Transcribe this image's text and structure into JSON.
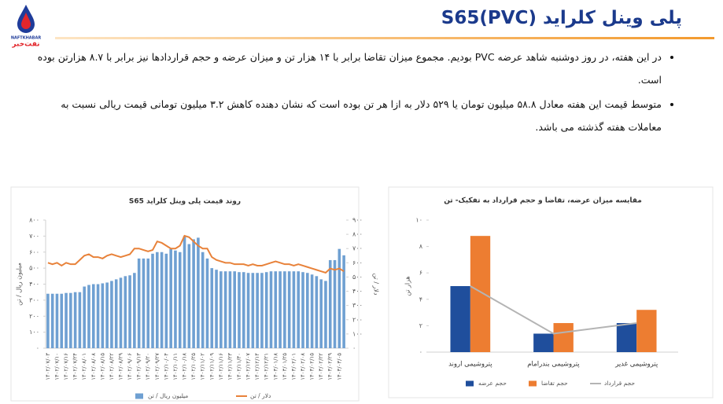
{
  "header": {
    "title": "پلی وینل کلراید (PVC)S65",
    "logo_en": "NAFTKHABAR",
    "logo_fa": "نفت‌خبر"
  },
  "bullets": [
    "در این هفته، در روز دوشنبه شاهد عرضه PVC بودیم. مجموع میزان تقاضا برابر با ۱۴ هزار تن و میزان عرضه و حجم قراردادها نیز برابر با ۸.۷ هزارتن بوده است.",
    "متوسط قیمت این هفته معادل ۵۸.۸ میلیون تومان یا ۵۲۹ دلار به ازا هر تن بوده است که نشان دهنده کاهش ۳.۲ میلیون تومانی قیمت ریالی نسبت به معاملات هفته گذشته می باشد."
  ],
  "chart_data": [
    {
      "type": "bar",
      "title": "روند قیمت پلی وینل کلراید S65",
      "ylabel": "میلیون ریال / تن",
      "y2label": "دلار / تن",
      "categories": [
        "۱۴۰۲/۰۷/۰۳",
        null,
        "۱۴۰۲/۰۷/۱۰",
        null,
        "۱۴۰۲/۰۷/۱۶",
        null,
        "۱۴۰۲/۰۷/۲۴",
        null,
        "۱۴۰۲/۰۸/۰۱",
        null,
        "۱۴۰۲/۰۸/۰۸",
        null,
        "۱۴۰۲/۰۸/۱۵",
        null,
        "۱۴۰۲/۰۸/۲۲",
        null,
        "۱۴۰۲/۰۸/۲۹",
        null,
        "۱۴۰۲/۰۹/۰۶",
        null,
        "۱۴۰۲/۰۹/۱۳",
        null,
        "۱۴۰۲/۰۹/۲۰",
        null,
        "۱۴۰۲/۰۹/۲۷",
        null,
        "۱۴۰۲/۱۰/۰۴",
        null,
        "۱۴۰۲/۱۰/۱۱",
        null,
        "۱۴۰۲/۱۰/۱۸",
        null,
        "۱۴۰۲/۱۰/۲۵",
        null,
        "۱۴۰۲/۱۱/۰۲",
        null,
        "۱۴۰۲/۱۱/۰۹",
        null,
        "۱۴۰۲/۱۱/۱۶",
        null,
        "۱۴۰۲/۱۱/۲۳",
        null,
        "۱۴۰۲/۱۱/۳۰",
        null,
        "۱۴۰۲/۱۲/۰۷",
        null,
        "۱۴۰۲/۱۲/۱۴",
        null,
        "۱۴۰۲/۱۲/۲۱",
        null,
        "۱۴۰۳/۰۱/۱۸",
        null,
        "۱۴۰۳/۰۱/۲۵",
        null,
        "۱۴۰۳/۰۲/۰۱",
        null,
        "۱۴۰۳/۰۲/۰۸",
        null,
        "۱۴۰۳/۰۲/۱۵",
        null,
        "۱۴۰۳/۰۲/۲۲",
        null,
        "۱۴۰۳/۰۲/۲۹",
        null,
        "۱۴۰۳/۰۳/۰۵",
        null
      ],
      "series": [
        {
          "name": "میلیون ریال / تن",
          "color": "#6fa0d2",
          "kind": "bar",
          "values": [
            340,
            340,
            340,
            340,
            345,
            345,
            350,
            350,
            385,
            395,
            400,
            400,
            405,
            410,
            420,
            430,
            440,
            450,
            455,
            470,
            560,
            560,
            560,
            590,
            600,
            600,
            590,
            620,
            610,
            600,
            700,
            650,
            680,
            690,
            600,
            560,
            500,
            490,
            480,
            480,
            480,
            480,
            475,
            475,
            470,
            470,
            470,
            470,
            475,
            480,
            480,
            480,
            480,
            480,
            480,
            480,
            475,
            470,
            460,
            450,
            430,
            420,
            550,
            550,
            620,
            580
          ]
        },
        {
          "name": "دلار / تن",
          "color": "#e8823a",
          "kind": "line",
          "axis": "y2",
          "values": [
            600,
            590,
            600,
            580,
            600,
            590,
            590,
            620,
            650,
            660,
            640,
            640,
            630,
            650,
            660,
            650,
            640,
            650,
            660,
            700,
            700,
            690,
            680,
            690,
            750,
            740,
            720,
            700,
            700,
            720,
            790,
            780,
            750,
            720,
            700,
            700,
            640,
            620,
            610,
            600,
            600,
            590,
            590,
            590,
            580,
            590,
            580,
            580,
            590,
            600,
            610,
            600,
            590,
            590,
            580,
            590,
            580,
            570,
            560,
            550,
            540,
            530,
            560,
            550,
            560,
            540
          ]
        }
      ],
      "ylim": [
        0,
        800
      ],
      "yticks": [
        {
          "value": 0,
          "label": "۰"
        },
        {
          "value": 100,
          "label": "۱۰۰"
        },
        {
          "value": 200,
          "label": "۲۰۰"
        },
        {
          "value": 300,
          "label": "۳۰۰"
        },
        {
          "value": 400,
          "label": "۴۰۰"
        },
        {
          "value": 500,
          "label": "۵۰۰"
        },
        {
          "value": 600,
          "label": "۶۰۰"
        },
        {
          "value": 700,
          "label": "۷۰۰"
        },
        {
          "value": 800,
          "label": "۸۰۰"
        }
      ],
      "y2lim": [
        0,
        900
      ],
      "y2ticks": [
        {
          "value": 0,
          "label": "۰"
        },
        {
          "value": 100,
          "label": "۱۰۰"
        },
        {
          "value": 200,
          "label": "۲۰۰"
        },
        {
          "value": 300,
          "label": "۳۰۰"
        },
        {
          "value": 400,
          "label": "۴۰۰"
        },
        {
          "value": 500,
          "label": "۵۰۰"
        },
        {
          "value": 600,
          "label": "۶۰۰"
        },
        {
          "value": 700,
          "label": "۷۰۰"
        },
        {
          "value": 800,
          "label": "۸۰۰"
        },
        {
          "value": 900,
          "label": "۹۰۰"
        }
      ]
    },
    {
      "type": "bar",
      "title": "مقایسه میزان عرضه، تقاضا و حجم قرارداد به تفکیک-  تن",
      "ylabel": "هزار تن",
      "categories": [
        "پتروشیمی اروند",
        "پتروشیمی بندرامام",
        "پتروشیمی غدیر"
      ],
      "series": [
        {
          "name": "حجم عرضه",
          "color": "#1f4e9c",
          "kind": "bar",
          "values": [
            5,
            1.4,
            2.2
          ]
        },
        {
          "name": "حجم تقاضا",
          "color": "#ed7d31",
          "kind": "bar",
          "values": [
            8.8,
            2.2,
            3.2
          ]
        },
        {
          "name": "حجم قرارداد",
          "color": "#b4b4b4",
          "kind": "line",
          "values": [
            5,
            1.4,
            2.2
          ]
        }
      ],
      "ylim": [
        0,
        10
      ],
      "yticks": [
        {
          "value": 0,
          "label": "۰"
        },
        {
          "value": 2,
          "label": "۲"
        },
        {
          "value": 4,
          "label": "۴"
        },
        {
          "value": 6,
          "label": "۶"
        },
        {
          "value": 8,
          "label": "۸"
        },
        {
          "value": 10,
          "label": "۱۰"
        }
      ]
    }
  ]
}
